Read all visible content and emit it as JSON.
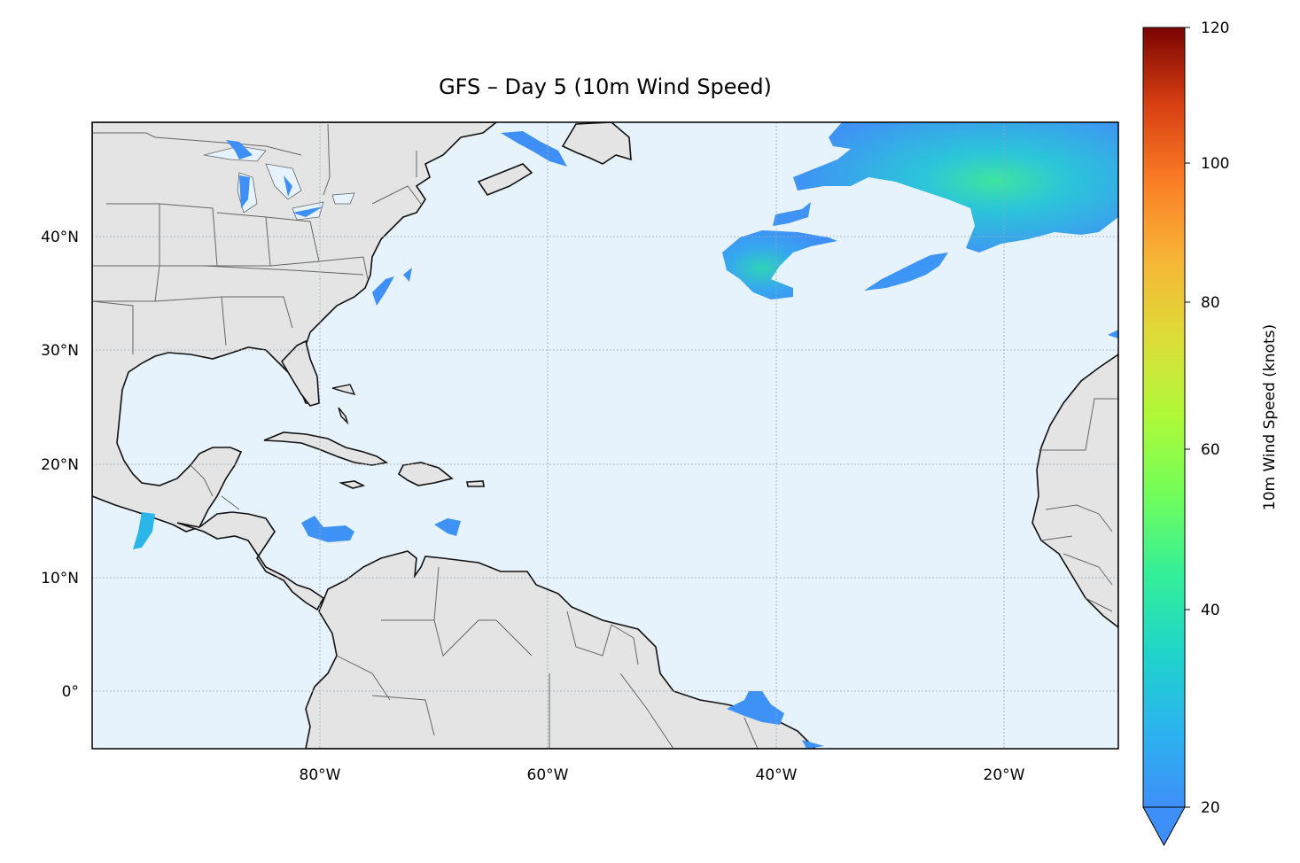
{
  "title": "GFS – Day 5 (10m Wind Speed)",
  "map": {
    "projection": "PlateCarree",
    "lon_range": [
      -100,
      -10
    ],
    "lat_range": [
      -5,
      50
    ],
    "ocean_color": "#e6f3fc",
    "land_color": "#e4e4e4",
    "coastline_color": "#111111",
    "border_color": "#666666",
    "gridlines": true
  },
  "axes": {
    "x_ticks": [
      "80°W",
      "60°W",
      "40°W",
      "20°W"
    ],
    "y_ticks": [
      "40°N",
      "30°N",
      "20°N",
      "10°N",
      "0°"
    ]
  },
  "colorbar": {
    "label": "10m Wind Speed (knots)",
    "ticks": [
      "120",
      "100",
      "80",
      "60",
      "40",
      "20"
    ],
    "range": [
      20,
      120
    ],
    "colormap": "turbo",
    "extend": "min"
  },
  "wind_regions": [
    {
      "name": "northeast-atlantic-high-winds",
      "peak_knots": 40
    },
    {
      "name": "central-atlantic-low",
      "peak_knots": 33
    },
    {
      "name": "gulf-of-saint-lawrence",
      "peak_knots": 22
    },
    {
      "name": "great-lakes",
      "peak_knots": 22
    },
    {
      "name": "gulf-of-tehuantepec",
      "peak_knots": 28
    },
    {
      "name": "caribbean-sea",
      "peak_knots": 22
    },
    {
      "name": "equatorial-atlantic",
      "peak_knots": 22
    }
  ]
}
